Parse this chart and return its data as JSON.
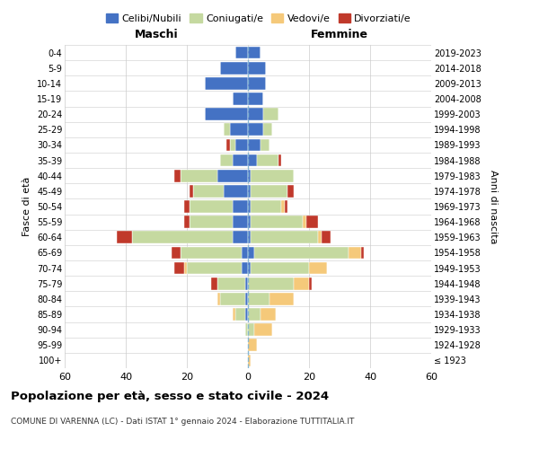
{
  "age_groups": [
    "100+",
    "95-99",
    "90-94",
    "85-89",
    "80-84",
    "75-79",
    "70-74",
    "65-69",
    "60-64",
    "55-59",
    "50-54",
    "45-49",
    "40-44",
    "35-39",
    "30-34",
    "25-29",
    "20-24",
    "15-19",
    "10-14",
    "5-9",
    "0-4"
  ],
  "birth_years": [
    "≤ 1923",
    "1924-1928",
    "1929-1933",
    "1934-1938",
    "1939-1943",
    "1944-1948",
    "1949-1953",
    "1954-1958",
    "1959-1963",
    "1964-1968",
    "1969-1973",
    "1974-1978",
    "1979-1983",
    "1984-1988",
    "1989-1993",
    "1994-1998",
    "1999-2003",
    "2004-2008",
    "2009-2013",
    "2014-2018",
    "2019-2023"
  ],
  "colors": {
    "celibi": "#4472c4",
    "coniugati": "#c5d9a0",
    "vedovi": "#f5c97a",
    "divorziati": "#c0392b"
  },
  "males": {
    "celibi": [
      0,
      0,
      0,
      1,
      1,
      1,
      2,
      2,
      5,
      5,
      5,
      8,
      10,
      5,
      4,
      6,
      14,
      5,
      14,
      9,
      4
    ],
    "coniugati": [
      0,
      0,
      1,
      3,
      8,
      9,
      18,
      20,
      33,
      14,
      14,
      10,
      12,
      4,
      2,
      2,
      0,
      0,
      0,
      0,
      0
    ],
    "vedovi": [
      0,
      0,
      0,
      1,
      1,
      0,
      1,
      0,
      0,
      0,
      0,
      0,
      0,
      0,
      0,
      0,
      0,
      0,
      0,
      0,
      0
    ],
    "divorziati": [
      0,
      0,
      0,
      0,
      0,
      2,
      3,
      3,
      5,
      2,
      2,
      1,
      2,
      0,
      1,
      0,
      0,
      0,
      0,
      0,
      0
    ]
  },
  "females": {
    "celibi": [
      0,
      0,
      0,
      0,
      0,
      0,
      1,
      2,
      1,
      1,
      1,
      1,
      1,
      3,
      4,
      5,
      5,
      5,
      6,
      6,
      4
    ],
    "coniugati": [
      0,
      0,
      2,
      4,
      7,
      15,
      19,
      31,
      22,
      17,
      10,
      12,
      14,
      7,
      3,
      3,
      5,
      0,
      0,
      0,
      0
    ],
    "vedovi": [
      1,
      3,
      6,
      5,
      8,
      5,
      6,
      4,
      1,
      1,
      1,
      0,
      0,
      0,
      0,
      0,
      0,
      0,
      0,
      0,
      0
    ],
    "divorziati": [
      0,
      0,
      0,
      0,
      0,
      1,
      0,
      1,
      3,
      4,
      1,
      2,
      0,
      1,
      0,
      0,
      0,
      0,
      0,
      0,
      0
    ]
  },
  "xlim": 60,
  "title": "Popolazione per età, sesso e stato civile - 2024",
  "subtitle": "COMUNE DI VARENNA (LC) - Dati ISTAT 1° gennaio 2024 - Elaborazione TUTTITALIA.IT",
  "ylabel": "Fasce di età",
  "ylabel_right": "Anni di nascita",
  "xlabel_left": "Maschi",
  "xlabel_right": "Femmine",
  "bg_color": "#ffffff",
  "grid_color": "#cccccc"
}
